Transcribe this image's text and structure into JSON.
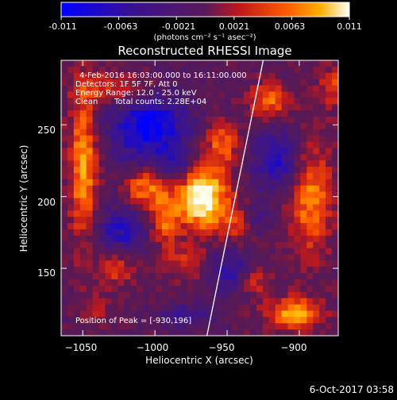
{
  "colorbar": {
    "ticks": [
      "-0.011",
      "-0.0063",
      "-0.0021",
      "0.0021",
      "0.0063",
      "0.011"
    ],
    "units_label": "(photons cm⁻² s⁻¹ asec⁻²)",
    "range": [
      -0.011,
      0.011
    ]
  },
  "chart_data": {
    "type": "heatmap",
    "title": "Reconstructed RHESSI Image",
    "xlabel": "Heliocentric X (arcsec)",
    "ylabel": "Heliocentric Y (arcsec)",
    "xlim": [
      -1065,
      -873
    ],
    "ylim": [
      103,
      295
    ],
    "x_ticks": [
      {
        "value": -1050,
        "label": "−1050"
      },
      {
        "value": -1000,
        "label": "−1000"
      },
      {
        "value": -950,
        "label": "−950"
      },
      {
        "value": -900,
        "label": "−900"
      }
    ],
    "y_ticks": [
      {
        "value": 150,
        "label": "150"
      },
      {
        "value": 200,
        "label": "200"
      },
      {
        "value": 250,
        "label": "250"
      }
    ],
    "annotations": [
      "4-Feb-2016 16:03:00.000 to 16:11:00.000",
      "Detectors: 1F 5F 7F, Att 0",
      "Energy Range: 12.0 - 25.0 keV",
      "Clean",
      "Total counts: 2.28E+04",
      "Position of Peak = [-930,196]"
    ],
    "peak": [
      -930,
      196
    ],
    "limb_line": [
      [
        -964,
        103
      ],
      [
        -925,
        295
      ]
    ],
    "grid": false
  },
  "footer": {
    "timestamp": "6-Oct-2017 03:58"
  }
}
